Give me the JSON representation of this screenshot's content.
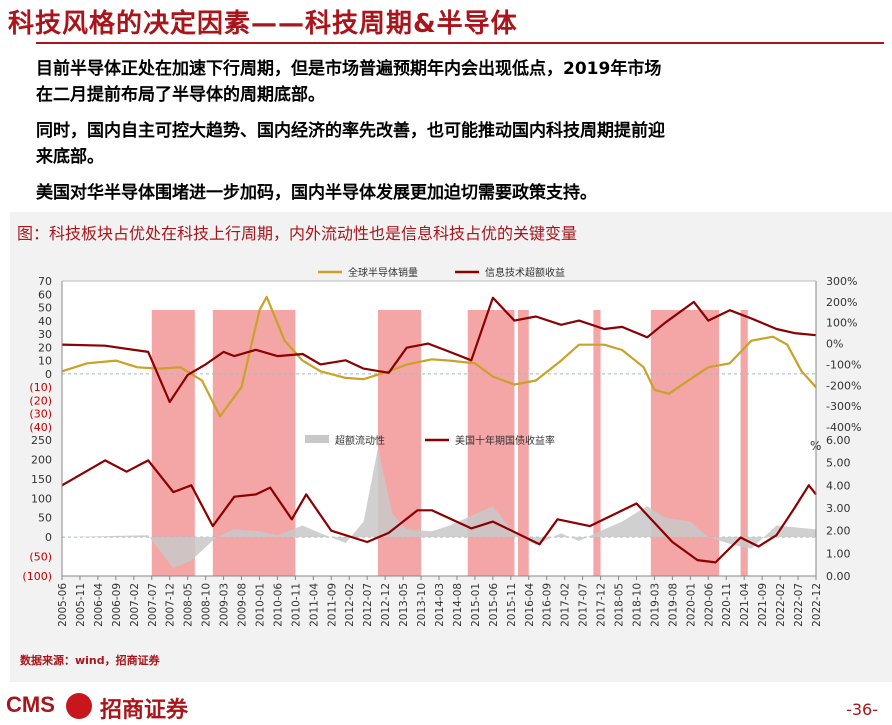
{
  "header": {
    "title": "科技风格的决定因素——科技周期&半导体"
  },
  "bullets": [
    "目前半导体正处在加速下行周期，但是市场普遍预期年内会出现低点，2019年市场在二月提前布局了半导体的周期底部。",
    "同时，国内自主可控大趋势、国内经济的率先改善，也可能推动国内科技周期提前迎来底部。",
    "美国对华半导体围堵进一步加码，国内半导体发展更加迫切需要政策支持。"
  ],
  "bullet_lines": [
    "目前半导体正处在加速下行周期，但是市场普遍预期年内会出现低点，2019年市场",
    "在二月提前布局了半导体的周期底部。",
    "同时，国内自主可控大趋势、国内经济的率先改善，也可能推动国内科技周期提前迎",
    "来底部。",
    "美国对华半导体围堵进一步加码，国内半导体发展更加迫切需要政策支持。"
  ],
  "figure": {
    "title": "图：科技板块占优处在科技上行周期，内外流动性也是信息科技占优的关键变量"
  },
  "source": "数据来源：wind，招商证券",
  "footer": {
    "brand_en": "CMS",
    "brand_cn": "招商证券",
    "page": "-36-"
  },
  "colors": {
    "brand": "#a9151b",
    "gold": "#c9a227",
    "darkred": "#8b0000",
    "shade": "#f4a6a6",
    "area": "#c8c8c8"
  },
  "chart_data": [
    {
      "type": "line",
      "x_ticks": [
        "2005-06",
        "2005-11",
        "2006-04",
        "2006-09",
        "2007-02",
        "2007-07",
        "2007-12",
        "2008-05",
        "2008-10",
        "2009-03",
        "2009-08",
        "2010-01",
        "2010-06",
        "2010-11",
        "2011-04",
        "2011-09",
        "2012-02",
        "2012-07",
        "2012-12",
        "2013-05",
        "2013-10",
        "2014-03",
        "2014-08",
        "2015-01",
        "2015-06",
        "2015-11",
        "2016-04",
        "2016-09",
        "2017-02",
        "2017-07",
        "2017-12",
        "2018-05",
        "2018-10",
        "2019-03",
        "2019-08",
        "2020-01",
        "2020-06",
        "2020-11",
        "2021-04",
        "2021-09",
        "2022-02",
        "2022-07",
        "2022-12"
      ],
      "shaded_periods": [
        [
          "2007-07",
          "2008-07"
        ],
        [
          "2008-12",
          "2010-11"
        ],
        [
          "2012-10",
          "2013-10"
        ],
        [
          "2014-11",
          "2015-12"
        ],
        [
          "2016-01",
          "2016-04"
        ],
        [
          "2017-10",
          "2017-12"
        ],
        [
          "2019-02",
          "2020-09"
        ],
        [
          "2021-03",
          "2021-05"
        ]
      ],
      "left_axis": {
        "ylim": [
          -40,
          70
        ],
        "ticks": [
          "70",
          "60",
          "50",
          "40",
          "30",
          "20",
          "10",
          "0",
          "(10)",
          "(20)",
          "(30)",
          "(40)"
        ]
      },
      "right_axis": {
        "ylim": [
          -400,
          300
        ],
        "ticks": [
          "300%",
          "200%",
          "100%",
          "0%",
          "-100%",
          "-200%",
          "-300%",
          "-400%"
        ]
      },
      "series": [
        {
          "name": "全球半导体销量",
          "axis": "left",
          "color": "#c9a227",
          "points": [
            [
              "2005-06",
              2
            ],
            [
              "2006-01",
              8
            ],
            [
              "2006-09",
              10
            ],
            [
              "2007-03",
              5
            ],
            [
              "2007-09",
              4
            ],
            [
              "2008-03",
              5
            ],
            [
              "2008-09",
              -5
            ],
            [
              "2009-02",
              -32
            ],
            [
              "2009-08",
              -10
            ],
            [
              "2010-01",
              48
            ],
            [
              "2010-03",
              58
            ],
            [
              "2010-08",
              25
            ],
            [
              "2011-01",
              10
            ],
            [
              "2011-06",
              2
            ],
            [
              "2012-01",
              -3
            ],
            [
              "2012-06",
              -4
            ],
            [
              "2013-01",
              2
            ],
            [
              "2013-06",
              7
            ],
            [
              "2014-01",
              11
            ],
            [
              "2014-06",
              10
            ],
            [
              "2015-01",
              8
            ],
            [
              "2015-06",
              -2
            ],
            [
              "2015-12",
              -8
            ],
            [
              "2016-06",
              -5
            ],
            [
              "2017-01",
              10
            ],
            [
              "2017-06",
              22
            ],
            [
              "2018-01",
              22
            ],
            [
              "2018-06",
              18
            ],
            [
              "2018-12",
              5
            ],
            [
              "2019-03",
              -12
            ],
            [
              "2019-07",
              -15
            ],
            [
              "2020-01",
              -4
            ],
            [
              "2020-06",
              5
            ],
            [
              "2020-12",
              8
            ],
            [
              "2021-06",
              25
            ],
            [
              "2021-12",
              28
            ],
            [
              "2022-04",
              22
            ],
            [
              "2022-08",
              2
            ],
            [
              "2022-12",
              -10
            ]
          ]
        },
        {
          "name": "信息技术超额收益",
          "axis": "right",
          "color": "#8b0000",
          "points": [
            [
              "2005-06",
              -5
            ],
            [
              "2006-06",
              -10
            ],
            [
              "2007-06",
              -40
            ],
            [
              "2007-12",
              -280
            ],
            [
              "2008-05",
              -150
            ],
            [
              "2008-10",
              -100
            ],
            [
              "2009-03",
              -40
            ],
            [
              "2009-06",
              -60
            ],
            [
              "2009-12",
              -30
            ],
            [
              "2010-06",
              -60
            ],
            [
              "2011-01",
              -50
            ],
            [
              "2011-06",
              -100
            ],
            [
              "2012-01",
              -80
            ],
            [
              "2012-06",
              -120
            ],
            [
              "2013-01",
              -140
            ],
            [
              "2013-06",
              -20
            ],
            [
              "2013-12",
              0
            ],
            [
              "2014-06",
              -40
            ],
            [
              "2014-12",
              -80
            ],
            [
              "2015-06",
              220
            ],
            [
              "2015-12",
              110
            ],
            [
              "2016-06",
              130
            ],
            [
              "2017-01",
              90
            ],
            [
              "2017-06",
              110
            ],
            [
              "2018-01",
              70
            ],
            [
              "2018-06",
              80
            ],
            [
              "2019-01",
              30
            ],
            [
              "2019-06",
              100
            ],
            [
              "2020-02",
              200
            ],
            [
              "2020-06",
              110
            ],
            [
              "2020-12",
              160
            ],
            [
              "2021-06",
              120
            ],
            [
              "2022-01",
              70
            ],
            [
              "2022-06",
              50
            ],
            [
              "2022-12",
              40
            ]
          ]
        }
      ]
    },
    {
      "type": "area",
      "left_axis": {
        "ylim": [
          -100,
          250
        ],
        "ticks": [
          "250",
          "200",
          "150",
          "100",
          "50",
          "0",
          "(50)",
          "(100)"
        ]
      },
      "right_axis": {
        "ylim": [
          0,
          6
        ],
        "ticks": [
          "6.00",
          "5.00",
          "4.00",
          "3.00",
          "2.00",
          "1.00",
          "0.00"
        ],
        "unit": "%"
      },
      "series": [
        {
          "name": "超额流动性",
          "axis": "left",
          "color": "#c8c8c8",
          "points": [
            [
              "2005-06",
              0
            ],
            [
              "2007-06",
              5
            ],
            [
              "2008-01",
              -80
            ],
            [
              "2008-06",
              -60
            ],
            [
              "2009-01",
              0
            ],
            [
              "2009-06",
              20
            ],
            [
              "2010-01",
              15
            ],
            [
              "2010-06",
              5
            ],
            [
              "2011-01",
              30
            ],
            [
              "2011-06",
              10
            ],
            [
              "2012-01",
              -15
            ],
            [
              "2012-06",
              40
            ],
            [
              "2012-10",
              230
            ],
            [
              "2013-02",
              60
            ],
            [
              "2013-06",
              20
            ],
            [
              "2014-01",
              15
            ],
            [
              "2014-06",
              30
            ],
            [
              "2015-06",
              80
            ],
            [
              "2015-12",
              10
            ],
            [
              "2016-06",
              -20
            ],
            [
              "2017-01",
              10
            ],
            [
              "2017-06",
              -10
            ],
            [
              "2018-01",
              20
            ],
            [
              "2018-06",
              40
            ],
            [
              "2019-01",
              80
            ],
            [
              "2019-06",
              50
            ],
            [
              "2020-01",
              40
            ],
            [
              "2020-06",
              0
            ],
            [
              "2021-01",
              -20
            ],
            [
              "2021-06",
              -30
            ],
            [
              "2022-01",
              30
            ],
            [
              "2022-12",
              20
            ]
          ]
        },
        {
          "name": "美国十年期国债收益率",
          "axis": "right",
          "color": "#8b0000",
          "points": [
            [
              "2005-06",
              4.0
            ],
            [
              "2006-06",
              5.1
            ],
            [
              "2006-12",
              4.6
            ],
            [
              "2007-06",
              5.1
            ],
            [
              "2008-01",
              3.7
            ],
            [
              "2008-06",
              4.0
            ],
            [
              "2008-12",
              2.2
            ],
            [
              "2009-06",
              3.5
            ],
            [
              "2009-12",
              3.6
            ],
            [
              "2010-04",
              3.9
            ],
            [
              "2010-10",
              2.5
            ],
            [
              "2011-02",
              3.6
            ],
            [
              "2011-09",
              2.0
            ],
            [
              "2012-07",
              1.5
            ],
            [
              "2013-01",
              1.9
            ],
            [
              "2013-09",
              2.9
            ],
            [
              "2014-01",
              2.9
            ],
            [
              "2014-12",
              2.1
            ],
            [
              "2015-06",
              2.4
            ],
            [
              "2016-07",
              1.4
            ],
            [
              "2016-12",
              2.5
            ],
            [
              "2017-09",
              2.2
            ],
            [
              "2018-10",
              3.2
            ],
            [
              "2019-08",
              1.5
            ],
            [
              "2020-03",
              0.7
            ],
            [
              "2020-08",
              0.6
            ],
            [
              "2021-03",
              1.7
            ],
            [
              "2021-08",
              1.3
            ],
            [
              "2022-01",
              1.8
            ],
            [
              "2022-06",
              3.0
            ],
            [
              "2022-10",
              4.0
            ],
            [
              "2022-12",
              3.6
            ]
          ]
        }
      ]
    }
  ]
}
